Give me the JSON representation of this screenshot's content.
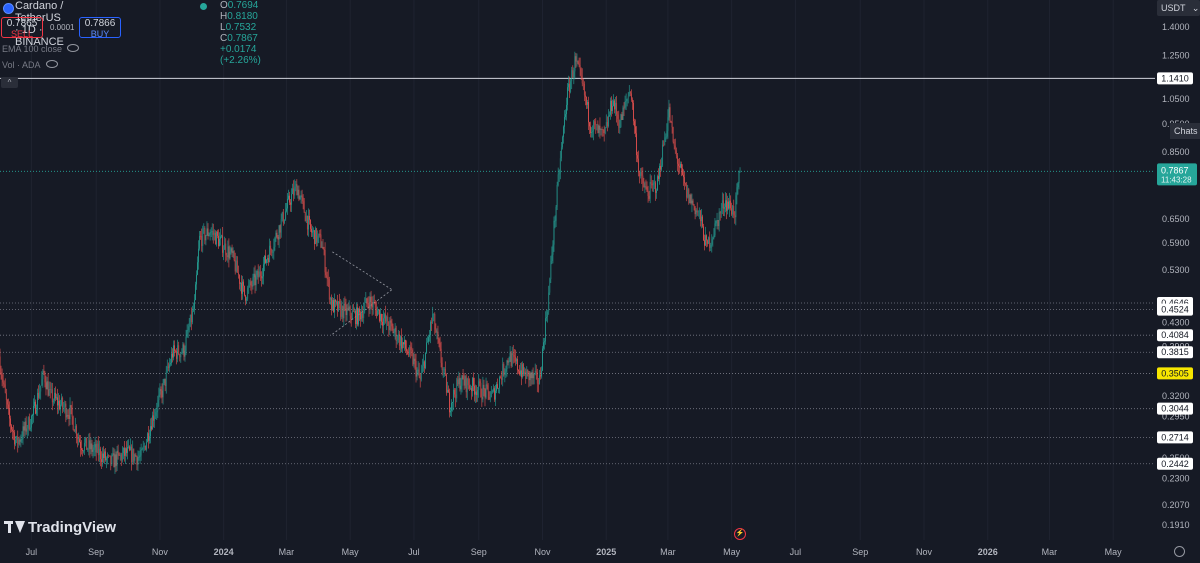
{
  "header": {
    "symbol_title": "Cardano / TetherUS · 1D · BINANCE",
    "ohlc": {
      "o_label": "O",
      "o": "0.7694",
      "h_label": "H",
      "h": "0.8180",
      "l_label": "L",
      "l": "0.7532",
      "c_label": "C",
      "c": "0.7867",
      "change": "+0.0174 (+2.26%)"
    },
    "sell_price": "0.7865",
    "sell_label": "SELL",
    "spread": "0.0001",
    "buy_price": "0.7866",
    "buy_label": "BUY",
    "indicator_1": "EMA 100 close",
    "indicator_2": "Vol · ADA",
    "collapse_icon": "chevron-up-icon"
  },
  "toolbar": {
    "currency": "USDT",
    "chats": "Chats"
  },
  "footer": {
    "logo": "TradingView"
  },
  "colors": {
    "bg": "#161a25",
    "up": "#26a69a",
    "down": "#ef5350",
    "grid": "#2a2e39",
    "text": "#b2b5be",
    "highlight": "#f7e600"
  },
  "chart_data": {
    "type": "candlestick",
    "y_scale": "log",
    "ylim": [
      0.18,
      1.5
    ],
    "y_ticks": [
      "1.4000",
      "1.2500",
      "1.0500",
      "0.9500",
      "0.8500",
      "0.6500",
      "0.5900",
      "0.5300",
      "0.4300",
      "0.3900",
      "0.3200",
      "0.2950",
      "0.2500",
      "0.2300",
      "0.2070",
      "0.1910"
    ],
    "x_ticks": [
      "Jul",
      "Sep",
      "Nov",
      "2024",
      "Mar",
      "May",
      "Jul",
      "Sep",
      "Nov",
      "2025",
      "Mar",
      "May",
      "Jul",
      "Sep",
      "Nov",
      "2026",
      "Mar",
      "May"
    ],
    "x_range": [
      "2023-06-01",
      "2026-06-10"
    ],
    "last_date": "2025-05-10",
    "current_price": {
      "value": 0.7867,
      "label": "0.7867",
      "countdown": "11:43:28"
    },
    "horizontal_levels": [
      {
        "label": "1.1410",
        "value": 1.141,
        "style": "solid"
      },
      {
        "label": "0.4646",
        "value": 0.4646,
        "style": "dotted"
      },
      {
        "label": "0.4524",
        "value": 0.4524,
        "style": "dotted"
      },
      {
        "label": "0.4084",
        "value": 0.4084,
        "style": "dotted"
      },
      {
        "label": "0.3815",
        "value": 0.3815,
        "style": "dotted"
      },
      {
        "label": "0.3505",
        "value": 0.3505,
        "style": "dotted",
        "highlight": true
      },
      {
        "label": "0.3044",
        "value": 0.3044,
        "style": "dotted"
      },
      {
        "label": "0.2714",
        "value": 0.2714,
        "style": "dotted"
      },
      {
        "label": "0.2442",
        "value": 0.2442,
        "style": "dotted"
      }
    ],
    "price_path": [
      [
        "2023-06-01",
        0.375
      ],
      [
        "2023-06-10",
        0.295
      ],
      [
        "2023-06-18",
        0.265
      ],
      [
        "2023-07-03",
        0.295
      ],
      [
        "2023-07-14",
        0.35
      ],
      [
        "2023-07-20",
        0.32
      ],
      [
        "2023-08-08",
        0.3
      ],
      [
        "2023-08-18",
        0.265
      ],
      [
        "2023-09-05",
        0.255
      ],
      [
        "2023-09-15",
        0.245
      ],
      [
        "2023-10-01",
        0.255
      ],
      [
        "2023-10-15",
        0.25
      ],
      [
        "2023-10-25",
        0.29
      ],
      [
        "2023-11-05",
        0.33
      ],
      [
        "2023-11-14",
        0.38
      ],
      [
        "2023-11-25",
        0.385
      ],
      [
        "2023-12-05",
        0.46
      ],
      [
        "2023-12-10",
        0.6
      ],
      [
        "2023-12-20",
        0.62
      ],
      [
        "2023-12-31",
        0.59
      ],
      [
        "2024-01-10",
        0.56
      ],
      [
        "2024-01-22",
        0.48
      ],
      [
        "2024-02-05",
        0.52
      ],
      [
        "2024-02-20",
        0.6
      ],
      [
        "2024-03-05",
        0.7
      ],
      [
        "2024-03-12",
        0.74
      ],
      [
        "2024-03-25",
        0.62
      ],
      [
        "2024-04-05",
        0.59
      ],
      [
        "2024-04-14",
        0.46
      ],
      [
        "2024-04-25",
        0.45
      ],
      [
        "2024-05-10",
        0.44
      ],
      [
        "2024-05-20",
        0.47
      ],
      [
        "2024-06-01",
        0.44
      ],
      [
        "2024-06-15",
        0.41
      ],
      [
        "2024-07-01",
        0.37
      ],
      [
        "2024-07-08",
        0.34
      ],
      [
        "2024-07-20",
        0.44
      ],
      [
        "2024-08-05",
        0.31
      ],
      [
        "2024-08-15",
        0.34
      ],
      [
        "2024-09-01",
        0.33
      ],
      [
        "2024-09-15",
        0.32
      ],
      [
        "2024-10-01",
        0.375
      ],
      [
        "2024-10-15",
        0.35
      ],
      [
        "2024-10-30",
        0.34
      ],
      [
        "2024-11-08",
        0.48
      ],
      [
        "2024-11-12",
        0.6
      ],
      [
        "2024-11-18",
        0.79
      ],
      [
        "2024-11-25",
        1.05
      ],
      [
        "2024-12-03",
        1.22
      ],
      [
        "2024-12-08",
        1.15
      ],
      [
        "2024-12-18",
        0.95
      ],
      [
        "2024-12-31",
        0.9
      ],
      [
        "2025-01-08",
        1.05
      ],
      [
        "2025-01-15",
        0.95
      ],
      [
        "2025-01-25",
        1.1
      ],
      [
        "2025-02-03",
        0.77
      ],
      [
        "2025-02-10",
        0.72
      ],
      [
        "2025-02-20",
        0.75
      ],
      [
        "2025-03-03",
        1.0
      ],
      [
        "2025-03-08",
        0.86
      ],
      [
        "2025-03-20",
        0.72
      ],
      [
        "2025-04-01",
        0.66
      ],
      [
        "2025-04-08",
        0.58
      ],
      [
        "2025-04-15",
        0.62
      ],
      [
        "2025-04-25",
        0.7
      ],
      [
        "2025-05-05",
        0.67
      ],
      [
        "2025-05-10",
        0.7867
      ]
    ],
    "trendlines": [
      {
        "points": [
          [
            "2024-04-14",
            0.57
          ],
          [
            "2024-06-10",
            0.49
          ]
        ]
      },
      {
        "points": [
          [
            "2024-04-14",
            0.41
          ],
          [
            "2024-06-10",
            0.49
          ]
        ]
      }
    ]
  }
}
